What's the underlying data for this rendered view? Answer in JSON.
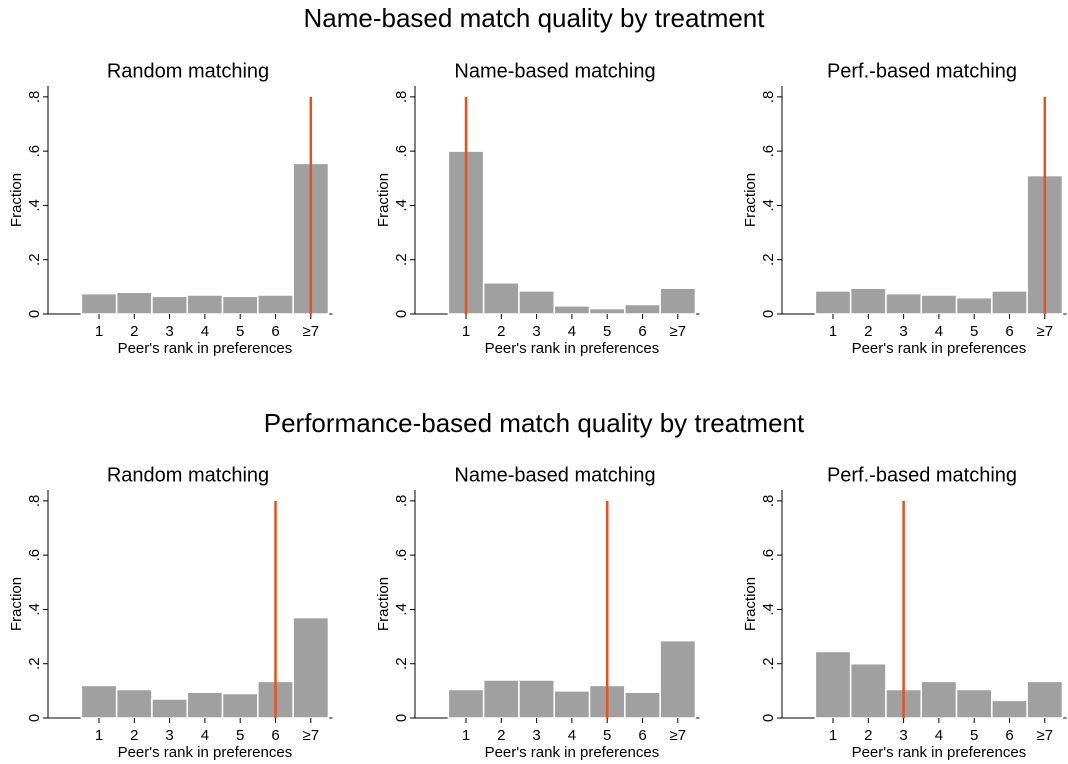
{
  "headings": [
    "Name-based match quality by treatment",
    "Performance-based match quality by treatment"
  ],
  "chart_data": [
    {
      "type": "bar",
      "title": "Random matching",
      "xlabel": "Peer's rank in preferences",
      "ylabel": "Fraction",
      "categories": [
        "1",
        "2",
        "3",
        "4",
        "5",
        "6",
        "≥7"
      ],
      "values": [
        0.075,
        0.08,
        0.065,
        0.07,
        0.065,
        0.07,
        0.555
      ],
      "color": "#a0a0a0",
      "ylim": [
        0,
        0.84
      ],
      "yticks": [
        0,
        {
          "value": 0.2,
          "label": ".2"
        },
        {
          "value": 0.4,
          "label": ".4"
        },
        {
          "value": 0.6,
          "label": ".6"
        },
        {
          "value": 0.8,
          "label": ".8"
        }
      ],
      "reference_line": {
        "x": 7,
        "y": 0.8,
        "color": "#e8501e"
      }
    },
    {
      "type": "bar",
      "title": "Name-based matching",
      "xlabel": "Peer's rank in preferences",
      "ylabel": "Fraction",
      "categories": [
        "1",
        "2",
        "3",
        "4",
        "5",
        "6",
        "≥7"
      ],
      "values": [
        0.6,
        0.115,
        0.085,
        0.03,
        0.02,
        0.035,
        0.095
      ],
      "color": "#a0a0a0",
      "ylim": [
        0,
        0.84
      ],
      "yticks": [
        0,
        {
          "value": 0.2,
          "label": ".2"
        },
        {
          "value": 0.4,
          "label": ".4"
        },
        {
          "value": 0.6,
          "label": ".6"
        },
        {
          "value": 0.8,
          "label": ".8"
        }
      ],
      "reference_line": {
        "x": 1,
        "y": 0.8,
        "color": "#e8501e"
      }
    },
    {
      "type": "bar",
      "title": "Perf.-based matching",
      "xlabel": "Peer's rank in preferences",
      "ylabel": "Fraction",
      "categories": [
        "1",
        "2",
        "3",
        "4",
        "5",
        "6",
        "≥7"
      ],
      "values": [
        0.085,
        0.095,
        0.075,
        0.07,
        0.06,
        0.085,
        0.51
      ],
      "color": "#a0a0a0",
      "ylim": [
        0,
        0.84
      ],
      "yticks": [
        0,
        {
          "value": 0.2,
          "label": ".2"
        },
        {
          "value": 0.4,
          "label": ".4"
        },
        {
          "value": 0.6,
          "label": ".6"
        },
        {
          "value": 0.8,
          "label": ".8"
        }
      ],
      "reference_line": {
        "x": 7,
        "y": 0.8,
        "color": "#e8501e"
      }
    },
    {
      "type": "bar",
      "title": "Random matching",
      "xlabel": "Peer's rank in preferences",
      "ylabel": "Fraction",
      "categories": [
        "1",
        "2",
        "3",
        "4",
        "5",
        "6",
        "≥7"
      ],
      "values": [
        0.12,
        0.105,
        0.07,
        0.095,
        0.09,
        0.135,
        0.37
      ],
      "color": "#a0a0a0",
      "ylim": [
        0,
        0.84
      ],
      "yticks": [
        0,
        {
          "value": 0.2,
          "label": ".2"
        },
        {
          "value": 0.4,
          "label": ".4"
        },
        {
          "value": 0.6,
          "label": ".6"
        },
        {
          "value": 0.8,
          "label": ".8"
        }
      ],
      "reference_line": {
        "x": 6,
        "y": 0.8,
        "color": "#e8501e"
      }
    },
    {
      "type": "bar",
      "title": "Name-based matching",
      "xlabel": "Peer's rank in preferences",
      "ylabel": "Fraction",
      "categories": [
        "1",
        "2",
        "3",
        "4",
        "5",
        "6",
        "≥7"
      ],
      "values": [
        0.105,
        0.14,
        0.14,
        0.1,
        0.12,
        0.095,
        0.285
      ],
      "color": "#a0a0a0",
      "ylim": [
        0,
        0.84
      ],
      "yticks": [
        0,
        {
          "value": 0.2,
          "label": ".2"
        },
        {
          "value": 0.4,
          "label": ".4"
        },
        {
          "value": 0.6,
          "label": ".6"
        },
        {
          "value": 0.8,
          "label": ".8"
        }
      ],
      "reference_line": {
        "x": 5,
        "y": 0.8,
        "color": "#e8501e"
      }
    },
    {
      "type": "bar",
      "title": "Perf.-based matching",
      "xlabel": "Peer's rank in preferences",
      "ylabel": "Fraction",
      "categories": [
        "1",
        "2",
        "3",
        "4",
        "5",
        "6",
        "≥7"
      ],
      "values": [
        0.245,
        0.2,
        0.105,
        0.135,
        0.105,
        0.065,
        0.135
      ],
      "color": "#a0a0a0",
      "ylim": [
        0,
        0.84
      ],
      "yticks": [
        0,
        {
          "value": 0.2,
          "label": ".2"
        },
        {
          "value": 0.4,
          "label": ".4"
        },
        {
          "value": 0.6,
          "label": ".6"
        },
        {
          "value": 0.8,
          "label": ".8"
        }
      ],
      "reference_line": {
        "x": 3,
        "y": 0.8,
        "color": "#e8501e"
      }
    }
  ]
}
